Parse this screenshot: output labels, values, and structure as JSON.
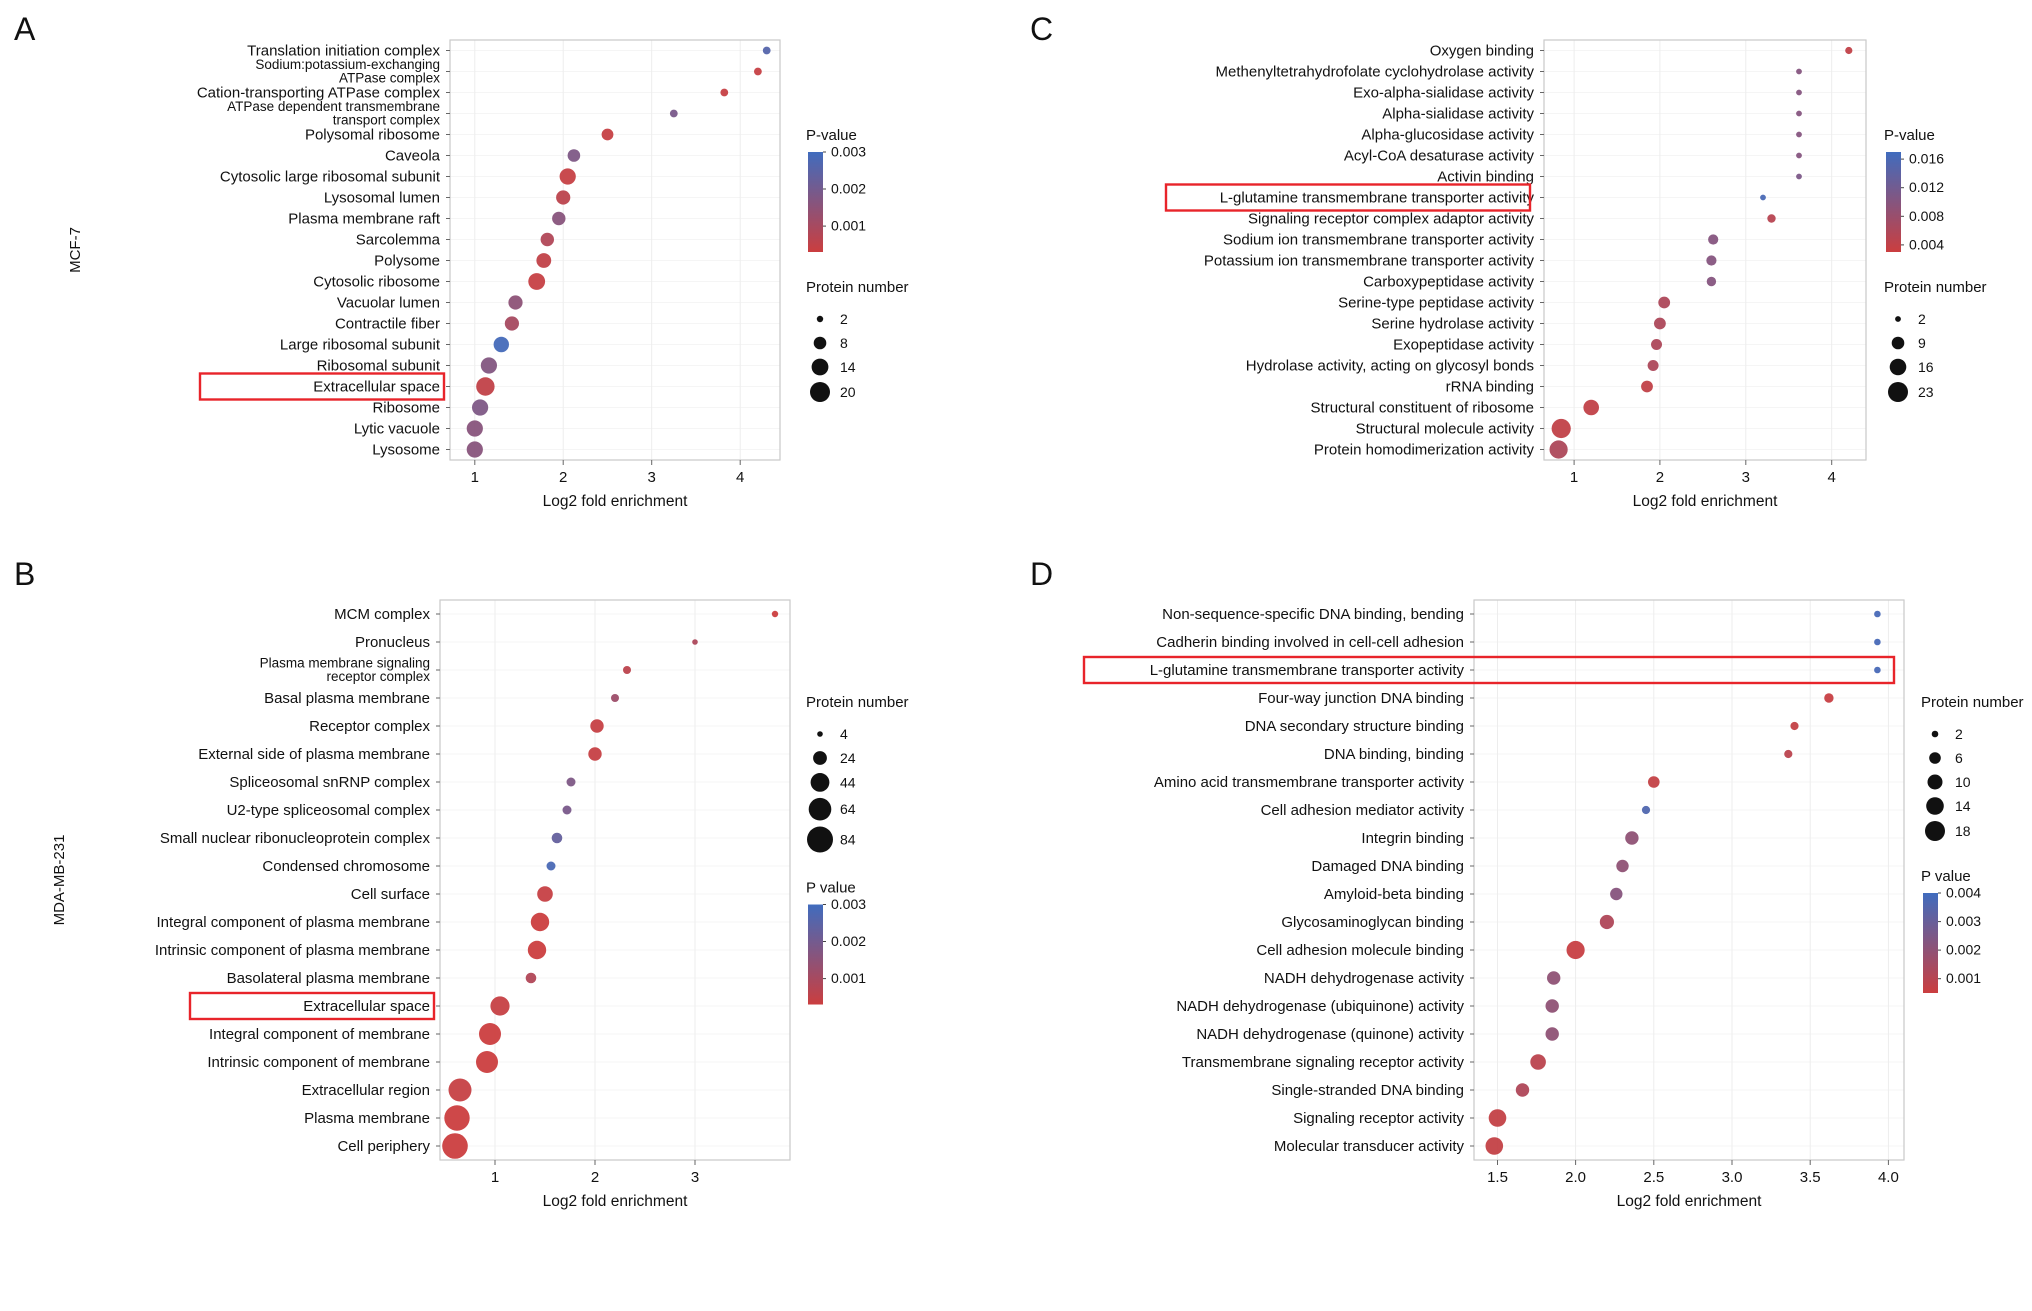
{
  "colors": {
    "p_low_red": "#cb3e3f",
    "p_high_blue": "#406cbe",
    "highlight": "#e8242a",
    "plot_border": "#c9c9c9"
  },
  "chart_data": [
    {
      "id": "A",
      "type": "scatter",
      "panel_letter": "A",
      "row_label": "MCF-7",
      "xlabel": "Log2 fold enrichment",
      "x_ticks": [
        1,
        2,
        3,
        4
      ],
      "x_tick_labels": [
        "1",
        "2",
        "3",
        "4"
      ],
      "x_range": [
        0.72,
        4.45
      ],
      "p_legend": {
        "title": "P-value",
        "min": 0.0003,
        "max": 0.003,
        "ticks": [
          "0.003",
          "0.002",
          "0.001"
        ]
      },
      "size_legend": {
        "title": "Protein number",
        "ticks": [
          2,
          8,
          14,
          20
        ]
      },
      "highlight_label": "Extracellular space",
      "points": [
        {
          "label": "Translation initiation complex",
          "x": 4.3,
          "n": 3,
          "p": 0.0026
        },
        {
          "label": [
            "Sodium:potassium-exchanging",
            "ATPase complex"
          ],
          "x": 4.2,
          "n": 3,
          "p": 0.0004
        },
        {
          "label": "Cation-transporting ATPase complex",
          "x": 3.82,
          "n": 3,
          "p": 0.0004
        },
        {
          "label": [
            "ATPase dependent transmembrane",
            "transport complex"
          ],
          "x": 3.25,
          "n": 3,
          "p": 0.0019
        },
        {
          "label": "Polysomal ribosome",
          "x": 2.5,
          "n": 7,
          "p": 0.0004
        },
        {
          "label": "Caveola",
          "x": 2.12,
          "n": 8,
          "p": 0.0018
        },
        {
          "label": "Cytosolic large ribosomal subunit",
          "x": 2.05,
          "n": 13,
          "p": 0.0004
        },
        {
          "label": "Lysosomal lumen",
          "x": 2.0,
          "n": 10,
          "p": 0.0006
        },
        {
          "label": "Plasma membrane raft",
          "x": 1.95,
          "n": 9,
          "p": 0.0016
        },
        {
          "label": "Sarcolemma",
          "x": 1.82,
          "n": 9,
          "p": 0.0008
        },
        {
          "label": "Polysome",
          "x": 1.78,
          "n": 11,
          "p": 0.0005
        },
        {
          "label": "Cytosolic ribosome",
          "x": 1.7,
          "n": 14,
          "p": 0.0004
        },
        {
          "label": "Vacuolar lumen",
          "x": 1.46,
          "n": 10,
          "p": 0.0015
        },
        {
          "label": "Contractile fiber",
          "x": 1.42,
          "n": 10,
          "p": 0.001
        },
        {
          "label": "Large ribosomal subunit",
          "x": 1.3,
          "n": 12,
          "p": 0.0029
        },
        {
          "label": "Ribosomal subunit",
          "x": 1.16,
          "n": 13,
          "p": 0.0017
        },
        {
          "label": "Extracellular space",
          "x": 1.12,
          "n": 17,
          "p": 0.0005
        },
        {
          "label": "Ribosome",
          "x": 1.06,
          "n": 13,
          "p": 0.0018
        },
        {
          "label": "Lytic vacuole",
          "x": 1.0,
          "n": 13,
          "p": 0.0016
        },
        {
          "label": "Lysosome",
          "x": 1.0,
          "n": 13,
          "p": 0.0016
        }
      ]
    },
    {
      "id": "B",
      "type": "scatter",
      "panel_letter": "B",
      "row_label": "MDA-MB-231",
      "xlabel": "Log2 fold enrichment",
      "x_ticks": [
        1,
        2,
        3
      ],
      "x_tick_labels": [
        "1",
        "2",
        "3"
      ],
      "x_range": [
        0.45,
        3.95
      ],
      "p_legend": {
        "title": "P value",
        "min": 0.0003,
        "max": 0.003,
        "ticks": [
          "0.003",
          "0.002",
          "0.001"
        ]
      },
      "size_legend": {
        "title": "Protein number",
        "ticks": [
          4,
          24,
          44,
          64,
          84
        ]
      },
      "highlight_label": "Extracellular space",
      "points": [
        {
          "label": "MCM complex",
          "x": 3.8,
          "n": 5,
          "p": 0.0003
        },
        {
          "label": "Pronucleus",
          "x": 3.0,
          "n": 4,
          "p": 0.0009
        },
        {
          "label": [
            "Plasma membrane signaling",
            "receptor complex"
          ],
          "x": 2.32,
          "n": 8,
          "p": 0.0006
        },
        {
          "label": "Basal plasma membrane",
          "x": 2.2,
          "n": 8,
          "p": 0.0012
        },
        {
          "label": "Receptor complex",
          "x": 2.02,
          "n": 22,
          "p": 0.0004
        },
        {
          "label": "External side of plasma membrane",
          "x": 2.0,
          "n": 22,
          "p": 0.0004
        },
        {
          "label": "Spliceosomal snRNP complex",
          "x": 1.76,
          "n": 10,
          "p": 0.0018
        },
        {
          "label": "U2-type spliceosomal complex",
          "x": 1.72,
          "n": 10,
          "p": 0.0019
        },
        {
          "label": "Small nuclear ribonucleoprotein complex",
          "x": 1.62,
          "n": 14,
          "p": 0.0023
        },
        {
          "label": "Condensed chromosome",
          "x": 1.56,
          "n": 10,
          "p": 0.0028
        },
        {
          "label": "Cell surface",
          "x": 1.5,
          "n": 30,
          "p": 0.0004
        },
        {
          "label": "Integral component of plasma membrane",
          "x": 1.45,
          "n": 42,
          "p": 0.0003
        },
        {
          "label": "Intrinsic component of plasma membrane",
          "x": 1.42,
          "n": 42,
          "p": 0.0003
        },
        {
          "label": "Basolateral plasma membrane",
          "x": 1.36,
          "n": 14,
          "p": 0.0008
        },
        {
          "label": "Extracellular space",
          "x": 1.05,
          "n": 46,
          "p": 0.0004
        },
        {
          "label": "Integral component of membrane",
          "x": 0.95,
          "n": 60,
          "p": 0.0003
        },
        {
          "label": "Intrinsic component of membrane",
          "x": 0.92,
          "n": 60,
          "p": 0.0003
        },
        {
          "label": "Extracellular region",
          "x": 0.65,
          "n": 66,
          "p": 0.0004
        },
        {
          "label": "Plasma membrane",
          "x": 0.62,
          "n": 80,
          "p": 0.0003
        },
        {
          "label": "Cell periphery",
          "x": 0.6,
          "n": 82,
          "p": 0.0003
        }
      ]
    },
    {
      "id": "C",
      "type": "scatter",
      "panel_letter": "C",
      "xlabel": "Log2 fold enrichment",
      "x_ticks": [
        1,
        2,
        3,
        4
      ],
      "x_tick_labels": [
        "1",
        "2",
        "3",
        "4"
      ],
      "x_range": [
        0.65,
        4.4
      ],
      "p_legend": {
        "title": "P-value",
        "min": 0.003,
        "max": 0.017,
        "ticks": [
          "0.016",
          "0.012",
          "0.008",
          "0.004"
        ]
      },
      "size_legend": {
        "title": "Protein number",
        "ticks": [
          2,
          9,
          16,
          23
        ]
      },
      "highlight_label": "L-glutamine transmembrane transporter activity",
      "points": [
        {
          "label": "Oxygen binding",
          "x": 4.2,
          "n": 3,
          "p": 0.004
        },
        {
          "label": "Methenyltetrahydrofolate cyclohydrolase activity",
          "x": 3.62,
          "n": 2,
          "p": 0.01
        },
        {
          "label": "Exo-alpha-sialidase activity",
          "x": 3.62,
          "n": 2,
          "p": 0.01
        },
        {
          "label": "Alpha-sialidase activity",
          "x": 3.62,
          "n": 2,
          "p": 0.01
        },
        {
          "label": "Alpha-glucosidase activity",
          "x": 3.62,
          "n": 2,
          "p": 0.01
        },
        {
          "label": "Acyl-CoA desaturase activity",
          "x": 3.62,
          "n": 2,
          "p": 0.01
        },
        {
          "label": "Activin binding",
          "x": 3.62,
          "n": 2,
          "p": 0.011
        },
        {
          "label": "L-glutamine transmembrane transporter activity",
          "x": 3.2,
          "n": 2,
          "p": 0.016
        },
        {
          "label": "Signaling receptor complex adaptor activity",
          "x": 3.3,
          "n": 4,
          "p": 0.005
        },
        {
          "label": "Sodium ion transmembrane transporter activity",
          "x": 2.62,
          "n": 6,
          "p": 0.01
        },
        {
          "label": "Potassium ion transmembrane transporter activity",
          "x": 2.6,
          "n": 6,
          "p": 0.01
        },
        {
          "label": "Carboxypeptidase activity",
          "x": 2.6,
          "n": 5,
          "p": 0.01
        },
        {
          "label": "Serine-type peptidase activity",
          "x": 2.05,
          "n": 8,
          "p": 0.006
        },
        {
          "label": "Serine hydrolase activity",
          "x": 2.0,
          "n": 8,
          "p": 0.006
        },
        {
          "label": "Exopeptidase activity",
          "x": 1.96,
          "n": 7,
          "p": 0.006
        },
        {
          "label": "Hydrolase activity, acting on glycosyl bonds",
          "x": 1.92,
          "n": 7,
          "p": 0.006
        },
        {
          "label": "rRNA binding",
          "x": 1.85,
          "n": 8,
          "p": 0.004
        },
        {
          "label": "Structural constituent of ribosome",
          "x": 1.2,
          "n": 14,
          "p": 0.004
        },
        {
          "label": "Structural molecule activity",
          "x": 0.85,
          "n": 21,
          "p": 0.004
        },
        {
          "label": "Protein homodimerization activity",
          "x": 0.82,
          "n": 19,
          "p": 0.006
        }
      ]
    },
    {
      "id": "D",
      "type": "scatter",
      "panel_letter": "D",
      "xlabel": "Log2 fold enrichment",
      "x_ticks": [
        1.5,
        2.0,
        2.5,
        3.0,
        3.5,
        4.0
      ],
      "x_tick_labels": [
        "1.5",
        "2.0",
        "2.5",
        "3.0",
        "3.5",
        "4.0"
      ],
      "x_range": [
        1.35,
        4.1
      ],
      "p_legend": {
        "title": "P value",
        "min": 0.0005,
        "max": 0.004,
        "ticks": [
          "0.004",
          "0.003",
          "0.002",
          "0.001"
        ]
      },
      "size_legend": {
        "title": "Protein number",
        "ticks": [
          2,
          6,
          10,
          14,
          18
        ]
      },
      "highlight_label": "L-glutamine transmembrane transporter activity",
      "points": [
        {
          "label": "Non-sequence-specific DNA binding, bending",
          "x": 3.93,
          "n": 2,
          "p": 0.0038
        },
        {
          "label": "Cadherin binding involved in cell-cell adhesion",
          "x": 3.93,
          "n": 2,
          "p": 0.0038
        },
        {
          "label": "L-glutamine transmembrane transporter activity",
          "x": 3.93,
          "n": 2,
          "p": 0.0038
        },
        {
          "label": "Four-way junction DNA binding",
          "x": 3.62,
          "n": 4,
          "p": 0.0006
        },
        {
          "label": "DNA secondary structure binding",
          "x": 3.4,
          "n": 3,
          "p": 0.0007
        },
        {
          "label": "DNA binding, binding",
          "x": 3.36,
          "n": 3,
          "p": 0.0009
        },
        {
          "label": "Amino acid transmembrane transporter activity",
          "x": 2.5,
          "n": 6,
          "p": 0.0007
        },
        {
          "label": "Cell adhesion mediator activity",
          "x": 2.45,
          "n": 3,
          "p": 0.0036
        },
        {
          "label": "Integrin binding",
          "x": 2.36,
          "n": 8,
          "p": 0.002
        },
        {
          "label": "Damaged DNA binding",
          "x": 2.3,
          "n": 7,
          "p": 0.002
        },
        {
          "label": "Amyloid-beta binding",
          "x": 2.26,
          "n": 7,
          "p": 0.0022
        },
        {
          "label": "Glycosaminoglycan binding",
          "x": 2.2,
          "n": 9,
          "p": 0.0012
        },
        {
          "label": "Cell adhesion molecule binding",
          "x": 2.0,
          "n": 15,
          "p": 0.0006
        },
        {
          "label": "NADH dehydrogenase activity",
          "x": 1.86,
          "n": 8,
          "p": 0.002
        },
        {
          "label": "NADH dehydrogenase (ubiquinone) activity",
          "x": 1.85,
          "n": 8,
          "p": 0.002
        },
        {
          "label": "NADH dehydrogenase (quinone) activity",
          "x": 1.85,
          "n": 8,
          "p": 0.002
        },
        {
          "label": "Transmembrane signaling receptor activity",
          "x": 1.76,
          "n": 11,
          "p": 0.0009
        },
        {
          "label": "Single-stranded DNA binding",
          "x": 1.66,
          "n": 8,
          "p": 0.0012
        },
        {
          "label": "Signaling receptor activity",
          "x": 1.5,
          "n": 14,
          "p": 0.0007
        },
        {
          "label": "Molecular transducer activity",
          "x": 1.48,
          "n": 14,
          "p": 0.0007
        }
      ]
    }
  ]
}
